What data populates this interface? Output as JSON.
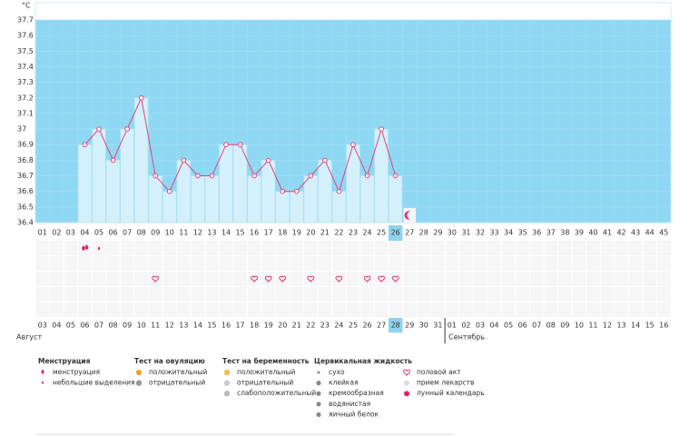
{
  "unit": "°C",
  "chart_data": {
    "type": "line",
    "categories": [
      "01",
      "02",
      "03",
      "04",
      "05",
      "06",
      "07",
      "08",
      "09",
      "10",
      "11",
      "12",
      "13",
      "14",
      "15",
      "16",
      "17",
      "18",
      "19",
      "20",
      "21",
      "22",
      "23",
      "24",
      "25",
      "26",
      "27",
      "28",
      "29",
      "30",
      "31",
      "32",
      "33",
      "34",
      "35",
      "36",
      "37",
      "38",
      "39",
      "40",
      "41",
      "42",
      "43",
      "44",
      "45"
    ],
    "values": [
      null,
      null,
      null,
      36.9,
      37.0,
      36.8,
      37.0,
      37.2,
      36.7,
      36.6,
      36.8,
      36.7,
      36.7,
      36.9,
      36.9,
      36.7,
      36.8,
      36.6,
      36.6,
      36.7,
      36.8,
      36.6,
      36.9,
      36.7,
      37.0,
      36.7,
      null,
      null,
      null,
      null,
      null,
      null,
      null,
      null,
      null,
      null,
      null,
      null,
      null,
      null,
      null,
      null,
      null,
      null,
      null
    ],
    "color": "#e0457c",
    "bar_color": "#d4f0fb",
    "background": "#8fd8f3",
    "ylim": [
      36.4,
      37.7
    ],
    "yticks": [
      36.4,
      36.5,
      36.6,
      36.7,
      36.8,
      36.9,
      37,
      37.1,
      37.2,
      37.3,
      37.4,
      37.5,
      37.6,
      37.7
    ]
  },
  "dates": [
    {
      "label": "03",
      "weekend": true
    },
    {
      "label": "04",
      "weekend": true
    },
    {
      "label": "05",
      "weekend": false
    },
    {
      "label": "06",
      "weekend": false
    },
    {
      "label": "07",
      "weekend": false
    },
    {
      "label": "08",
      "weekend": false
    },
    {
      "label": "09",
      "weekend": false
    },
    {
      "label": "10",
      "weekend": true
    },
    {
      "label": "11",
      "weekend": true
    },
    {
      "label": "12",
      "weekend": false
    },
    {
      "label": "13",
      "weekend": false
    },
    {
      "label": "14",
      "weekend": false
    },
    {
      "label": "15",
      "weekend": false
    },
    {
      "label": "16",
      "weekend": false
    },
    {
      "label": "17",
      "weekend": true
    },
    {
      "label": "18",
      "weekend": true
    },
    {
      "label": "19",
      "weekend": false
    },
    {
      "label": "20",
      "weekend": false
    },
    {
      "label": "21",
      "weekend": false
    },
    {
      "label": "22",
      "weekend": false
    },
    {
      "label": "23",
      "weekend": false
    },
    {
      "label": "24",
      "weekend": true
    },
    {
      "label": "25",
      "weekend": true
    },
    {
      "label": "26",
      "weekend": false
    },
    {
      "label": "27",
      "weekend": false
    },
    {
      "label": "28",
      "weekend": false
    },
    {
      "label": "29",
      "weekend": false
    },
    {
      "label": "30",
      "weekend": false
    },
    {
      "label": "31",
      "weekend": true
    },
    {
      "label": "01",
      "weekend": false
    },
    {
      "label": "02",
      "weekend": false
    },
    {
      "label": "03",
      "weekend": false
    },
    {
      "label": "04",
      "weekend": false
    },
    {
      "label": "05",
      "weekend": false
    },
    {
      "label": "06",
      "weekend": false
    },
    {
      "label": "07",
      "weekend": true
    },
    {
      "label": "08",
      "weekend": true
    },
    {
      "label": "09",
      "weekend": false
    },
    {
      "label": "10",
      "weekend": false
    },
    {
      "label": "11",
      "weekend": false
    },
    {
      "label": "12",
      "weekend": false
    },
    {
      "label": "13",
      "weekend": false
    },
    {
      "label": "14",
      "weekend": true
    },
    {
      "label": "15",
      "weekend": true
    },
    {
      "label": "16",
      "weekend": false
    }
  ],
  "months": [
    {
      "label": "Август",
      "start": 0
    },
    {
      "label": "Сентябрь",
      "start": 29
    }
  ],
  "today_index": 25,
  "moon_index": 26,
  "menstruation_heavy": [
    3
  ],
  "menstruation_light": [
    4
  ],
  "sex_days": [
    8,
    15,
    16,
    17,
    19,
    21,
    23,
    24,
    25
  ],
  "legend": [
    {
      "title": "Менструация",
      "items": [
        "менструация",
        "небольшие выделения"
      ]
    },
    {
      "title": "Тест на овуляцию",
      "items": [
        "положительный",
        "отрицательный"
      ]
    },
    {
      "title": "Тест на беременность",
      "items": [
        "положительный",
        "отрицательный",
        "слабоположительный"
      ]
    },
    {
      "title": "Цервикальная жидкость",
      "items": [
        "сухо",
        "клейкая",
        "кремообразная",
        "водянистая",
        "яичный белок"
      ]
    },
    {
      "items": [
        "половой акт",
        "прием лекарств",
        "лунный календарь"
      ]
    }
  ]
}
